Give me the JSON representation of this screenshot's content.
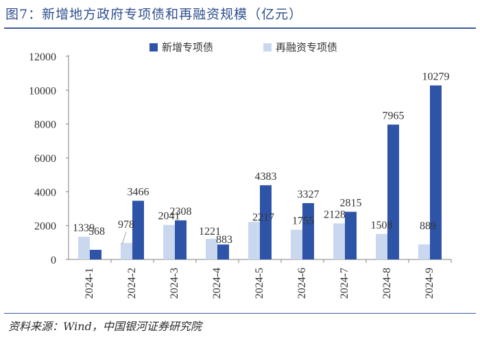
{
  "figure": {
    "title": "图7：新增地方政府专项债和再融资规模（亿元）",
    "source": "资料来源：Wind，中国银河证券研究院"
  },
  "colors": {
    "new": "#2e54a8",
    "refi": "#cad8ef",
    "axis": "#808080",
    "text": "#333333"
  },
  "chart_data": {
    "type": "bar",
    "title": "新增地方政府专项债和再融资规模（亿元）",
    "xlabel": "",
    "ylabel": "",
    "ylim": [
      0,
      12000
    ],
    "yticks": [
      0,
      2000,
      4000,
      6000,
      8000,
      10000,
      12000
    ],
    "categories": [
      "2024-1",
      "2024-2",
      "2024-3",
      "2024-4",
      "2024-5",
      "2024-6",
      "2024-7",
      "2024-8",
      "2024-9"
    ],
    "legend_position": "top",
    "series": [
      {
        "name": "新增专项债",
        "key": "new",
        "values": [
          568,
          3466,
          2308,
          883,
          4383,
          3327,
          2815,
          7965,
          10279
        ]
      },
      {
        "name": "再融资专项债",
        "key": "refi",
        "values": [
          1339,
          978,
          2041,
          1221,
          2217,
          1755,
          2128,
          1508,
          889
        ]
      }
    ]
  }
}
